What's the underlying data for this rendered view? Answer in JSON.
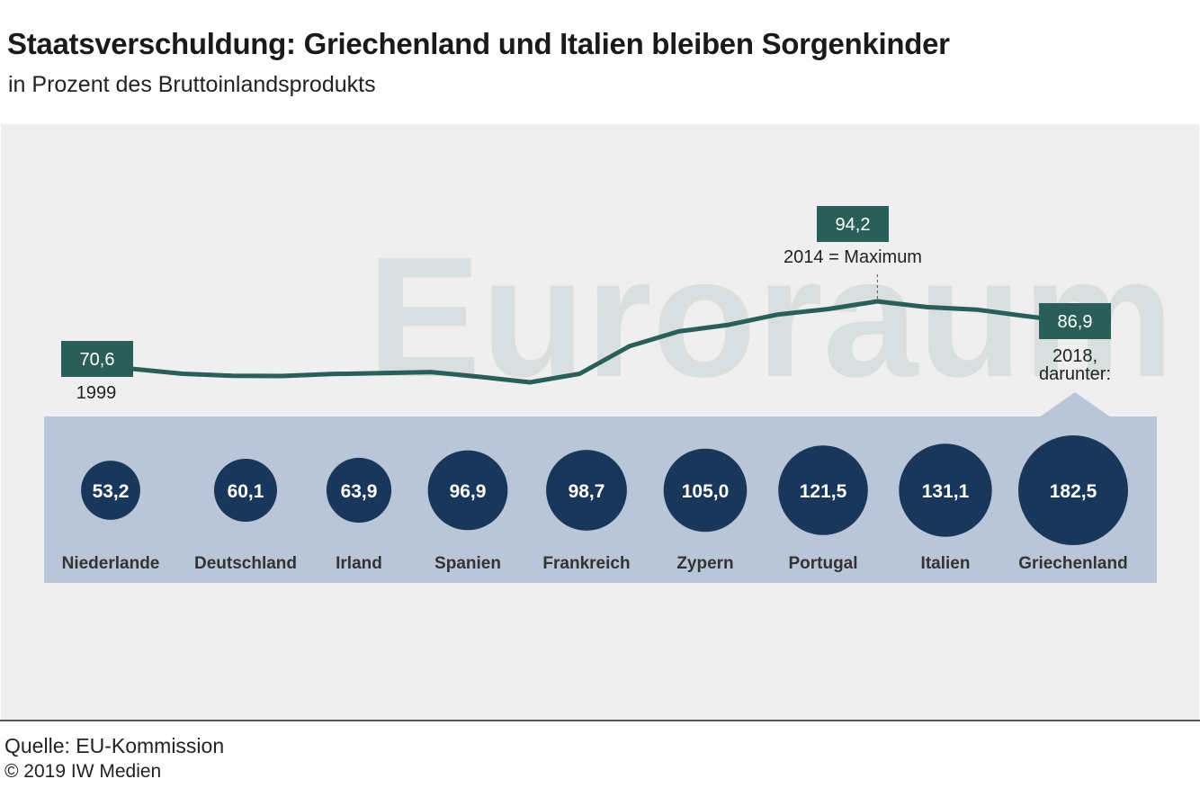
{
  "title": "Staatsverschuldung: Griechenland und Italien bleiben Sorgenkinder",
  "subtitle": "in Prozent des Bruttoinlandsprodukts",
  "watermark": "Euroraum",
  "source": "Quelle: EU-Kommission",
  "copyright": "© 2019 IW Medien",
  "colors": {
    "line": "#2a5f59",
    "flag": "#2a5f59",
    "bubble": "#19365b",
    "band": "#b8c6d8",
    "panel": "#efefef",
    "watermark": "#d9dfde"
  },
  "chart_data": [
    {
      "type": "line",
      "series": [
        {
          "name": "Euroraum",
          "x": [
            1999,
            2000,
            2001,
            2002,
            2003,
            2004,
            2005,
            2006,
            2007,
            2008,
            2009,
            2010,
            2011,
            2012,
            2013,
            2014,
            2015,
            2016,
            2017,
            2018
          ],
          "values": [
            70.6,
            68.9,
            68.2,
            68.1,
            68.8,
            69.1,
            69.5,
            67.8,
            65.9,
            68.9,
            78.5,
            83.7,
            86.0,
            89.6,
            91.5,
            94.2,
            92.2,
            91.3,
            89.0,
            86.9
          ]
        }
      ],
      "annotations": {
        "start": {
          "value": "70,6",
          "label": "1999"
        },
        "max": {
          "value": "94,2",
          "label": "2014 = Maximum"
        },
        "end": {
          "value": "86,9",
          "label_line1": "2018,",
          "label_line2": "darunter:"
        }
      }
    },
    {
      "type": "bubble",
      "categories": [
        "Niederlande",
        "Deutschland",
        "Irland",
        "Spanien",
        "Frankreich",
        "Zypern",
        "Portugal",
        "Italien",
        "Griechenland"
      ],
      "values": [
        53.2,
        60.1,
        63.9,
        96.9,
        98.7,
        105.0,
        121.5,
        131.1,
        182.5
      ],
      "labels": [
        "53,2",
        "60,1",
        "63,9",
        "96,9",
        "98,7",
        "105,0",
        "121,5",
        "131,1",
        "182,5"
      ]
    }
  ]
}
